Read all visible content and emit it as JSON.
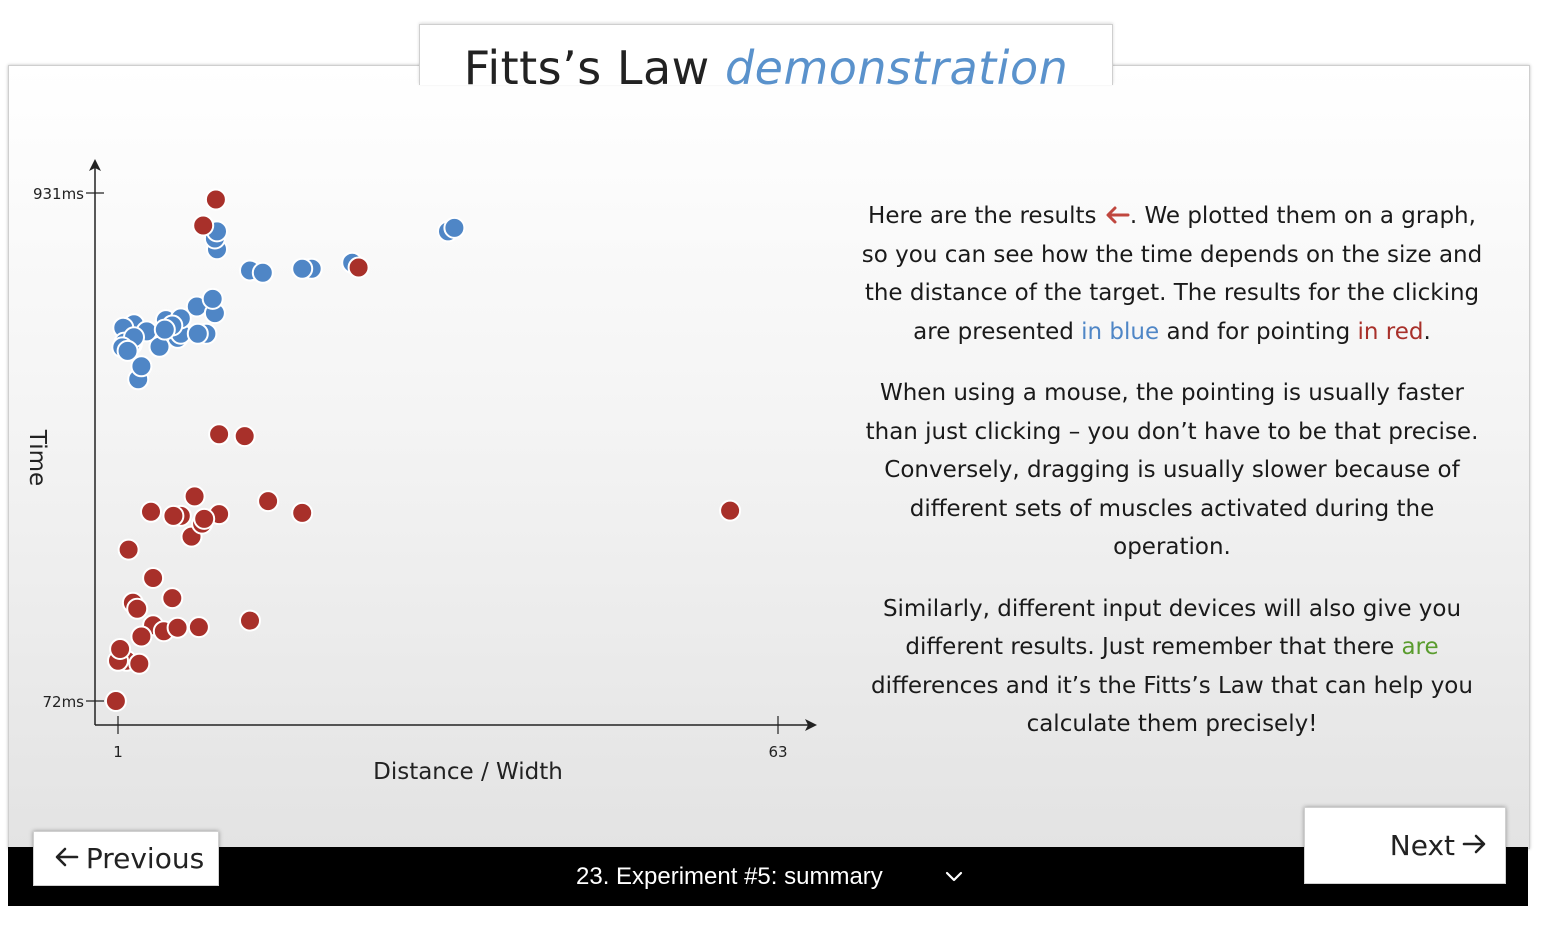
{
  "title": {
    "main": "Fitts’s Law",
    "accent": "demonstration"
  },
  "colors": {
    "clicking": "#4f86c6",
    "pointing": "#a8302a",
    "highlight_green": "#5a9c2e",
    "accent_title": "#5a92cc"
  },
  "chart_data": {
    "type": "scatter",
    "xlabel": "Distance / Width",
    "ylabel": "Time",
    "x_ticks": [
      "1",
      "63"
    ],
    "y_ticks": [
      "72ms",
      "931ms"
    ],
    "xlim": [
      1,
      63
    ],
    "ylim": [
      72,
      931
    ],
    "series": [
      {
        "color": "#4f86c6",
        "points": [
          [
            2.5,
            709
          ],
          [
            2.3,
            675
          ],
          [
            2.9,
            616
          ],
          [
            2.2,
            676
          ],
          [
            5.5,
            716
          ],
          [
            4.9,
            671
          ],
          [
            8.4,
            739
          ],
          [
            3.7,
            697
          ],
          [
            1.5,
            703
          ],
          [
            3.2,
            638
          ],
          [
            10.3,
            836
          ],
          [
            10.1,
            854
          ],
          [
            6.6,
            686
          ],
          [
            9.3,
            693
          ],
          [
            10.3,
            866
          ],
          [
            10.1,
            728
          ],
          [
            6.9,
            693
          ],
          [
            9.9,
            752
          ],
          [
            13.4,
            800
          ],
          [
            14.6,
            796
          ],
          [
            19.2,
            803
          ],
          [
            18.3,
            803
          ],
          [
            23.0,
            813
          ],
          [
            6.9,
            719
          ],
          [
            1.6,
            678
          ],
          [
            2.5,
            687
          ],
          [
            1.4,
            670
          ],
          [
            1.9,
            664
          ],
          [
            32.0,
            866
          ],
          [
            32.6,
            872
          ],
          [
            6.1,
            707
          ],
          [
            5.4,
            700
          ],
          [
            8.5,
            693
          ]
        ]
      },
      {
        "color": "#a8302a",
        "points": [
          [
            0.8,
            72
          ],
          [
            2.0,
            328
          ],
          [
            2.4,
            238
          ],
          [
            4.3,
            280
          ],
          [
            1.8,
            140
          ],
          [
            1.0,
            140
          ],
          [
            1.2,
            160
          ],
          [
            4.3,
            200
          ],
          [
            5.3,
            190
          ],
          [
            6.6,
            196
          ],
          [
            6.1,
            246
          ],
          [
            7.9,
            350
          ],
          [
            8.9,
            372
          ],
          [
            10.5,
            388
          ],
          [
            6.9,
            385
          ],
          [
            8.2,
            418
          ],
          [
            10.5,
            523
          ],
          [
            12.9,
            520
          ],
          [
            15.1,
            410
          ],
          [
            18.3,
            390
          ],
          [
            23.6,
            805
          ],
          [
            9.0,
            876
          ],
          [
            10.2,
            920
          ],
          [
            58.5,
            394
          ],
          [
            2.8,
            228
          ],
          [
            4.1,
            392
          ],
          [
            6.2,
            385
          ],
          [
            3.0,
            135
          ],
          [
            8.6,
            197
          ],
          [
            13.4,
            208
          ],
          [
            3.2,
            181
          ],
          [
            9.1,
            380
          ]
        ]
      }
    ],
    "grid": false,
    "legend": "none"
  },
  "text": {
    "p1_a": "Here are the results ",
    "p1_arrow": "🠐",
    "p1_b": ". We plotted them on a graph, so you can see how the time depends on the size and the distance of the target. The results for the clicking are presented ",
    "p1_blue": "in blue",
    "p1_c": " and for pointing ",
    "p1_red": "in red",
    "p1_d": ".",
    "p2": "When using a mouse, the pointing is usually faster than just clicking – you don’t have to be that precise. Conversely, dragging is usually slower because of different sets of muscles activated during the operation.",
    "p3_a": "Similarly, different input devices will also give you different results. Just remember that there ",
    "p3_green": "are",
    "p3_b": " differences and it’s the Fitts’s Law that can help you calculate them precisely!"
  },
  "nav": {
    "previous_label": "Previous",
    "next_label": "Next",
    "current_slide": "23. Experiment #5: summary",
    "left_arrow_icon": "arrow-left",
    "right_arrow_icon": "arrow-right",
    "dropdown_icon": "chevron-down"
  }
}
